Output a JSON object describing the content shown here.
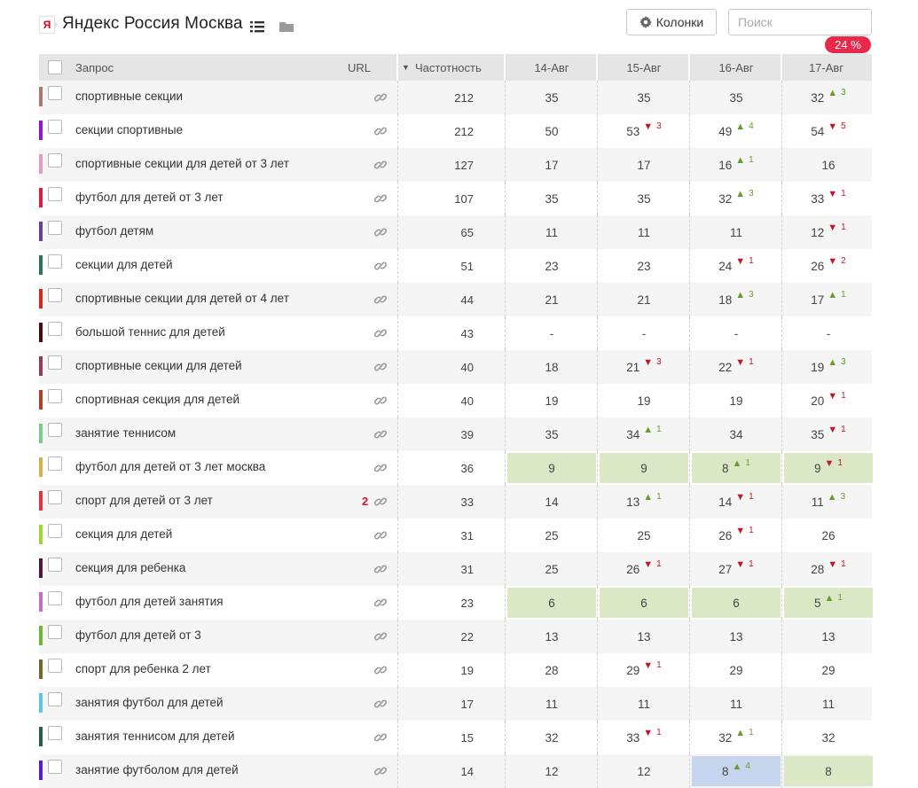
{
  "header": {
    "brand_letter": "Я",
    "title": "Яндекс Россия Москва",
    "columns_label": "Колонки",
    "search_placeholder": "Поиск",
    "progress": "24 %"
  },
  "table": {
    "columns": {
      "query": "Запрос",
      "url": "URL",
      "sort_indicator": "▼",
      "frequency": "Частотность",
      "dates": [
        "14-Авг",
        "15-Авг",
        "16-Авг",
        "17-Авг"
      ]
    },
    "rows": [
      {
        "query": "спортивные секции",
        "freq": "212",
        "color": "#a9786e",
        "rank": "",
        "cells": [
          {
            "v": "35"
          },
          {
            "v": "35"
          },
          {
            "v": "35"
          },
          {
            "v": "32",
            "dir": "up",
            "d": "3"
          }
        ]
      },
      {
        "query": "секции спортивные",
        "freq": "212",
        "color": "#9412d6",
        "rank": "",
        "cells": [
          {
            "v": "50"
          },
          {
            "v": "53",
            "dir": "down",
            "d": "3"
          },
          {
            "v": "49",
            "dir": "up",
            "d": "4"
          },
          {
            "v": "54",
            "dir": "down",
            "d": "5"
          }
        ]
      },
      {
        "query": "спортивные секции для детей от 3 лет",
        "freq": "127",
        "color": "#e59bc4",
        "rank": "",
        "cells": [
          {
            "v": "17"
          },
          {
            "v": "17"
          },
          {
            "v": "16",
            "dir": "up",
            "d": "1"
          },
          {
            "v": "16"
          }
        ]
      },
      {
        "query": "футбол для детей от 3 лет",
        "freq": "107",
        "color": "#e01b3c",
        "rank": "",
        "cells": [
          {
            "v": "35"
          },
          {
            "v": "35"
          },
          {
            "v": "32",
            "dir": "up",
            "d": "3"
          },
          {
            "v": "33",
            "dir": "down",
            "d": "1"
          }
        ]
      },
      {
        "query": "футбол детям",
        "freq": "65",
        "color": "#6a3e98",
        "rank": "",
        "cells": [
          {
            "v": "11"
          },
          {
            "v": "11"
          },
          {
            "v": "11"
          },
          {
            "v": "12",
            "dir": "down",
            "d": "1"
          }
        ]
      },
      {
        "query": "секции для детей",
        "freq": "51",
        "color": "#2d735f",
        "rank": "",
        "cells": [
          {
            "v": "23"
          },
          {
            "v": "23"
          },
          {
            "v": "24",
            "dir": "down",
            "d": "1"
          },
          {
            "v": "26",
            "dir": "down",
            "d": "2"
          }
        ]
      },
      {
        "query": "спортивные секции для детей от 4 лет",
        "freq": "44",
        "color": "#d32a1a",
        "rank": "",
        "cells": [
          {
            "v": "21"
          },
          {
            "v": "21"
          },
          {
            "v": "18",
            "dir": "up",
            "d": "3"
          },
          {
            "v": "17",
            "dir": "up",
            "d": "1"
          }
        ]
      },
      {
        "query": "большой теннис для детей",
        "freq": "43",
        "color": "#4a0a14",
        "rank": "",
        "cells": [
          {
            "v": "-"
          },
          {
            "v": "-"
          },
          {
            "v": "-"
          },
          {
            "v": "-"
          }
        ]
      },
      {
        "query": "спортивные секции для детей",
        "freq": "40",
        "color": "#923d55",
        "rank": "",
        "cells": [
          {
            "v": "18"
          },
          {
            "v": "21",
            "dir": "down",
            "d": "3"
          },
          {
            "v": "22",
            "dir": "down",
            "d": "1"
          },
          {
            "v": "19",
            "dir": "up",
            "d": "3"
          }
        ]
      },
      {
        "query": "спортивная секция для детей",
        "freq": "40",
        "color": "#b24024",
        "rank": "",
        "cells": [
          {
            "v": "19"
          },
          {
            "v": "19"
          },
          {
            "v": "19"
          },
          {
            "v": "20",
            "dir": "down",
            "d": "1"
          }
        ]
      },
      {
        "query": "занятие теннисом",
        "freq": "39",
        "color": "#7dcb8a",
        "rank": "",
        "cells": [
          {
            "v": "35"
          },
          {
            "v": "34",
            "dir": "up",
            "d": "1"
          },
          {
            "v": "34"
          },
          {
            "v": "35",
            "dir": "down",
            "d": "1"
          }
        ]
      },
      {
        "query": "футбол для детей от 3 лет москва",
        "freq": "36",
        "color": "#d4b14a",
        "rank": "",
        "cells": [
          {
            "v": "9",
            "hl": "green"
          },
          {
            "v": "9",
            "hl": "green"
          },
          {
            "v": "8",
            "dir": "up",
            "d": "1",
            "hl": "green"
          },
          {
            "v": "9",
            "dir": "down",
            "d": "1",
            "hl": "green"
          }
        ]
      },
      {
        "query": "спорт для детей от 3 лет",
        "freq": "33",
        "color": "#e4323d",
        "rank": "2",
        "cells": [
          {
            "v": "14"
          },
          {
            "v": "13",
            "dir": "up",
            "d": "1"
          },
          {
            "v": "14",
            "dir": "down",
            "d": "1"
          },
          {
            "v": "11",
            "dir": "up",
            "d": "3"
          }
        ]
      },
      {
        "query": "секция для детей",
        "freq": "31",
        "color": "#9ed833",
        "rank": "",
        "cells": [
          {
            "v": "25"
          },
          {
            "v": "25"
          },
          {
            "v": "26",
            "dir": "down",
            "d": "1"
          },
          {
            "v": "26"
          }
        ]
      },
      {
        "query": "секция для ребенка",
        "freq": "31",
        "color": "#4e1637",
        "rank": "",
        "cells": [
          {
            "v": "25"
          },
          {
            "v": "26",
            "dir": "down",
            "d": "1"
          },
          {
            "v": "27",
            "dir": "down",
            "d": "1"
          },
          {
            "v": "28",
            "dir": "down",
            "d": "1"
          }
        ]
      },
      {
        "query": "футбол для детей занятия",
        "freq": "23",
        "color": "#c66cc8",
        "rank": "",
        "cells": [
          {
            "v": "6",
            "hl": "green"
          },
          {
            "v": "6",
            "hl": "green"
          },
          {
            "v": "6",
            "hl": "green"
          },
          {
            "v": "5",
            "dir": "up",
            "d": "1",
            "hl": "green"
          }
        ]
      },
      {
        "query": "футбол для детей от 3",
        "freq": "22",
        "color": "#6fb53b",
        "rank": "",
        "cells": [
          {
            "v": "13"
          },
          {
            "v": "13"
          },
          {
            "v": "13"
          },
          {
            "v": "13"
          }
        ]
      },
      {
        "query": "спорт для ребенка 2 лет",
        "freq": "19",
        "color": "#6d6a2a",
        "rank": "",
        "cells": [
          {
            "v": "28"
          },
          {
            "v": "29",
            "dir": "down",
            "d": "1"
          },
          {
            "v": "29"
          },
          {
            "v": "29"
          }
        ]
      },
      {
        "query": "занятия футбол для детей",
        "freq": "17",
        "color": "#5ec3e6",
        "rank": "",
        "cells": [
          {
            "v": "11"
          },
          {
            "v": "11"
          },
          {
            "v": "11"
          },
          {
            "v": "11"
          }
        ]
      },
      {
        "query": "занятия теннисом для детей",
        "freq": "15",
        "color": "#285e4d",
        "rank": "",
        "cells": [
          {
            "v": "32"
          },
          {
            "v": "33",
            "dir": "down",
            "d": "1"
          },
          {
            "v": "32",
            "dir": "up",
            "d": "1"
          },
          {
            "v": "32"
          }
        ]
      },
      {
        "query": "занятие футболом для детей",
        "freq": "14",
        "color": "#5a1ad6",
        "rank": "",
        "cells": [
          {
            "v": "12"
          },
          {
            "v": "12"
          },
          {
            "v": "8",
            "dir": "up",
            "d": "4",
            "hl": "blue"
          },
          {
            "v": "8",
            "hl": "green"
          }
        ]
      }
    ]
  }
}
